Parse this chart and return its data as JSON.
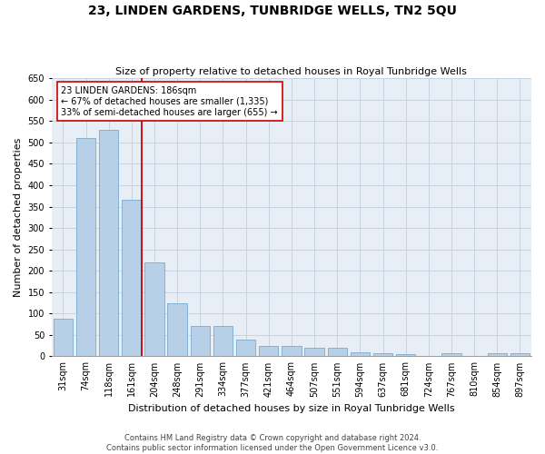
{
  "title": "23, LINDEN GARDENS, TUNBRIDGE WELLS, TN2 5QU",
  "subtitle": "Size of property relative to detached houses in Royal Tunbridge Wells",
  "xlabel": "Distribution of detached houses by size in Royal Tunbridge Wells",
  "ylabel": "Number of detached properties",
  "footer_line1": "Contains HM Land Registry data © Crown copyright and database right 2024.",
  "footer_line2": "Contains public sector information licensed under the Open Government Licence v3.0.",
  "categories": [
    "31sqm",
    "74sqm",
    "118sqm",
    "161sqm",
    "204sqm",
    "248sqm",
    "291sqm",
    "334sqm",
    "377sqm",
    "421sqm",
    "464sqm",
    "507sqm",
    "551sqm",
    "594sqm",
    "637sqm",
    "681sqm",
    "724sqm",
    "767sqm",
    "810sqm",
    "854sqm",
    "897sqm"
  ],
  "values": [
    88,
    510,
    530,
    365,
    220,
    125,
    70,
    70,
    40,
    25,
    25,
    20,
    20,
    10,
    8,
    5,
    0,
    8,
    0,
    7,
    7
  ],
  "bar_color": "#b8cfe8",
  "bar_edge_color": "#7aaad0",
  "grid_color": "#c8d4e4",
  "background_color": "#e8eef6",
  "vline_color": "#cc0000",
  "vline_x_idx": 3,
  "annotation_text": "23 LINDEN GARDENS: 186sqm\n← 67% of detached houses are smaller (1,335)\n33% of semi-detached houses are larger (655) →",
  "annotation_box_color": "#ffffff",
  "annotation_box_edge": "#cc0000",
  "ylim": [
    0,
    650
  ],
  "yticks": [
    0,
    50,
    100,
    150,
    200,
    250,
    300,
    350,
    400,
    450,
    500,
    550,
    600,
    650
  ],
  "title_fontsize": 10,
  "subtitle_fontsize": 8,
  "xlabel_fontsize": 8,
  "ylabel_fontsize": 8,
  "tick_fontsize": 7,
  "footer_fontsize": 6,
  "annotation_fontsize": 7
}
